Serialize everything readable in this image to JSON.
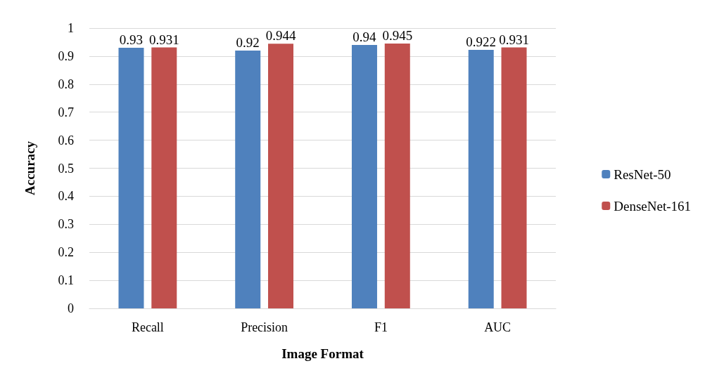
{
  "chart_data": {
    "type": "bar",
    "xlabel": "Image Format",
    "ylabel": "Accuracy",
    "categories": [
      "Recall",
      "Precision",
      "F1",
      "AUC"
    ],
    "series": [
      {
        "name": "ResNet-50",
        "color": "#4f81bd",
        "values": [
          0.93,
          0.92,
          0.94,
          0.922
        ]
      },
      {
        "name": "DenseNet-161",
        "color": "#c0504d",
        "values": [
          0.931,
          0.944,
          0.945,
          0.931
        ]
      }
    ],
    "ylim": [
      0,
      1
    ],
    "yticks": [
      0,
      0.1,
      0.2,
      0.3,
      0.4,
      0.5,
      0.6,
      0.7,
      0.8,
      0.9,
      1
    ],
    "grid": "y",
    "legend": "right",
    "data_labels": true
  }
}
